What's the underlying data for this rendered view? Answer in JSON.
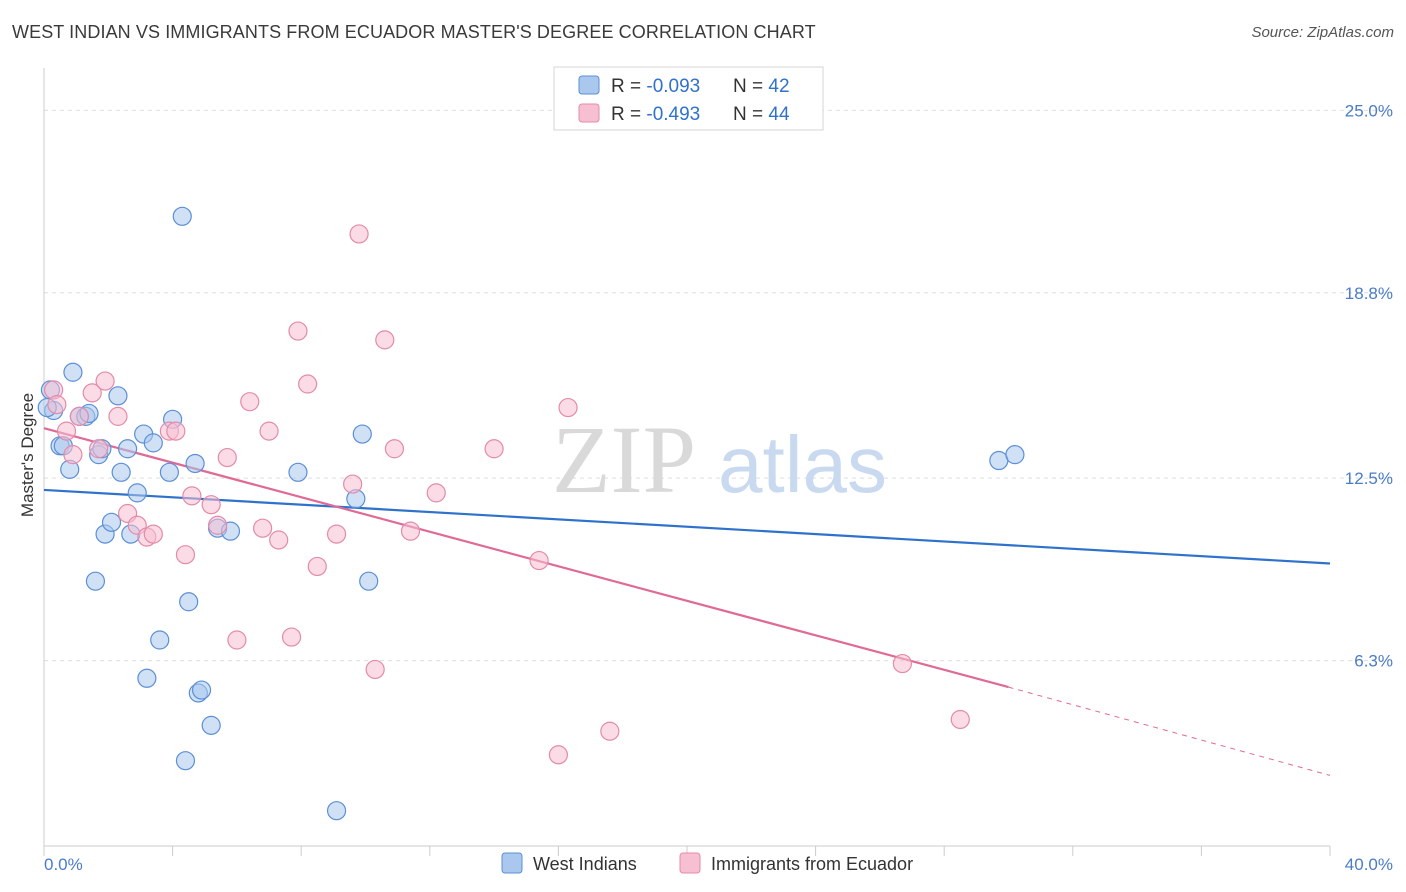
{
  "title": "WEST INDIAN VS IMMIGRANTS FROM ECUADOR MASTER'S DEGREE CORRELATION CHART",
  "source": "Source: ZipAtlas.com",
  "watermark": {
    "zip": "ZIP",
    "atlas": "atlas"
  },
  "colors": {
    "blue_fill": "#aac8ee",
    "blue_stroke": "#5b8fd6",
    "blue_line": "#2f72cc",
    "pink_fill": "#f7c0d2",
    "pink_stroke": "#e48aaa",
    "pink_line": "#e06a96",
    "grid": "#dddddd",
    "tick_text": "#4a7cc9"
  },
  "legend": {
    "rows": [
      {
        "r_label": "R = ",
        "r_value": "-0.093",
        "n_label": "N = ",
        "n_value": "42"
      },
      {
        "r_label": "R = ",
        "r_value": "-0.493",
        "n_label": "N = ",
        "n_value": "44"
      }
    ]
  },
  "chart_data": {
    "type": "scatter",
    "title": "WEST INDIAN VS IMMIGRANTS FROM ECUADOR MASTER'S DEGREE CORRELATION CHART",
    "xlabel": "",
    "ylabel": "Master's Degree",
    "xlim": [
      0,
      40
    ],
    "ylim": [
      0,
      26.1
    ],
    "x_tick_labels": [
      "0.0%",
      "40.0%"
    ],
    "y_ticks": [
      6.3,
      12.5,
      18.8,
      25.0
    ],
    "y_tick_labels": [
      "6.3%",
      "12.5%",
      "18.8%",
      "25.0%"
    ],
    "grid": true,
    "legend_position": "top-center",
    "series": [
      {
        "name": "West Indians",
        "r": -0.093,
        "n": 42,
        "trend": {
          "x0": 0,
          "y0": 12.1,
          "x1": 40,
          "y1": 9.6
        },
        "points": [
          [
            0.2,
            15.5
          ],
          [
            0.3,
            14.8
          ],
          [
            0.5,
            13.6
          ],
          [
            0.6,
            13.6
          ],
          [
            0.8,
            12.8
          ],
          [
            0.9,
            16.1
          ],
          [
            1.1,
            14.6
          ],
          [
            1.3,
            14.6
          ],
          [
            1.4,
            14.7
          ],
          [
            1.6,
            9.0
          ],
          [
            1.7,
            13.3
          ],
          [
            1.8,
            13.5
          ],
          [
            1.9,
            10.6
          ],
          [
            2.1,
            11.0
          ],
          [
            2.3,
            15.3
          ],
          [
            2.4,
            12.7
          ],
          [
            2.6,
            13.5
          ],
          [
            2.7,
            10.6
          ],
          [
            2.9,
            12.0
          ],
          [
            3.1,
            14.0
          ],
          [
            3.2,
            5.7
          ],
          [
            3.4,
            13.7
          ],
          [
            3.6,
            7.0
          ],
          [
            3.9,
            12.7
          ],
          [
            4.0,
            14.5
          ],
          [
            4.3,
            21.4
          ],
          [
            4.5,
            8.3
          ],
          [
            4.7,
            13.0
          ],
          [
            4.8,
            5.2
          ],
          [
            4.9,
            5.3
          ],
          [
            5.2,
            4.1
          ],
          [
            5.4,
            10.8
          ],
          [
            5.8,
            10.7
          ],
          [
            4.4,
            2.9
          ],
          [
            7.9,
            12.7
          ],
          [
            9.1,
            1.2
          ],
          [
            9.7,
            11.8
          ],
          [
            9.9,
            14.0
          ],
          [
            10.1,
            9.0
          ],
          [
            29.7,
            13.1
          ],
          [
            30.2,
            13.3
          ],
          [
            0.1,
            14.9
          ]
        ]
      },
      {
        "name": "Immigrants from Ecuador",
        "r": -0.493,
        "n": 44,
        "trend": {
          "x0": 0,
          "y0": 14.2,
          "x1": 30.0,
          "y1": 5.4
        },
        "trend_dashed": {
          "x0": 30.0,
          "y0": 5.4,
          "x1": 40,
          "y1": 2.4
        },
        "points": [
          [
            0.3,
            15.5
          ],
          [
            0.4,
            15.0
          ],
          [
            0.7,
            14.1
          ],
          [
            0.9,
            13.3
          ],
          [
            1.1,
            14.6
          ],
          [
            1.5,
            15.4
          ],
          [
            1.7,
            13.5
          ],
          [
            1.9,
            15.8
          ],
          [
            2.3,
            14.6
          ],
          [
            2.6,
            11.3
          ],
          [
            2.9,
            10.9
          ],
          [
            3.2,
            10.5
          ],
          [
            3.4,
            10.6
          ],
          [
            3.9,
            14.1
          ],
          [
            4.1,
            14.1
          ],
          [
            4.4,
            9.9
          ],
          [
            4.6,
            11.9
          ],
          [
            5.2,
            11.6
          ],
          [
            5.4,
            10.9
          ],
          [
            5.7,
            13.2
          ],
          [
            6.0,
            7.0
          ],
          [
            6.4,
            15.1
          ],
          [
            6.8,
            10.8
          ],
          [
            7.0,
            14.1
          ],
          [
            7.3,
            10.4
          ],
          [
            7.7,
            7.1
          ],
          [
            7.9,
            17.5
          ],
          [
            8.2,
            15.7
          ],
          [
            8.5,
            9.5
          ],
          [
            9.1,
            10.6
          ],
          [
            9.6,
            12.3
          ],
          [
            9.8,
            20.8
          ],
          [
            10.3,
            6.0
          ],
          [
            10.6,
            17.2
          ],
          [
            10.9,
            13.5
          ],
          [
            11.4,
            10.7
          ],
          [
            12.2,
            12.0
          ],
          [
            14.0,
            13.5
          ],
          [
            15.4,
            9.7
          ],
          [
            16.0,
            3.1
          ],
          [
            16.3,
            14.9
          ],
          [
            17.6,
            3.9
          ],
          [
            26.7,
            6.2
          ],
          [
            28.5,
            4.3
          ]
        ]
      }
    ]
  }
}
